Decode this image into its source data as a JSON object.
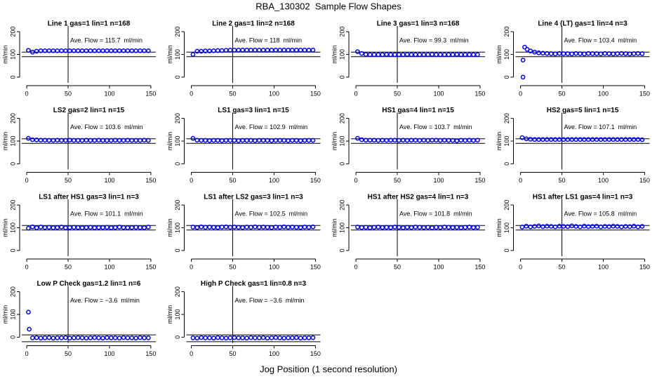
{
  "title": "RBA_130302  Sample Flow Shapes",
  "xlabel": "Jog Position (1 second resolution)",
  "chart_data": [
    {
      "type": "scatter",
      "title": "Line 1 gas=1 lin=1 n=168",
      "annotation": "Ave. Flow = 115.7  ml/min",
      "ylabel": "ml/min",
      "color": "#0000ff",
      "xlim": [
        -6,
        156
      ],
      "ylim": [
        -25,
        225
      ],
      "xticks": [
        0,
        50,
        100,
        150
      ],
      "yticks": [
        0,
        100,
        200
      ],
      "vline": 50,
      "hlines": [
        90,
        110
      ],
      "x": [
        2,
        7,
        12,
        17,
        22,
        27,
        32,
        37,
        42,
        47,
        52,
        57,
        62,
        67,
        72,
        77,
        82,
        87,
        92,
        97,
        102,
        107,
        112,
        117,
        122,
        127,
        132,
        137,
        142,
        147
      ],
      "values": [
        118,
        110,
        114,
        116,
        116,
        116,
        116,
        116,
        116,
        116,
        116,
        116,
        116,
        116,
        116,
        116,
        116,
        116,
        116,
        116,
        116,
        116,
        116,
        116,
        116,
        116,
        116,
        116,
        116,
        116
      ]
    },
    {
      "type": "scatter",
      "title": "Line 2 gas=1 lin=2 n=168",
      "annotation": "Ave. Flow = 118  ml/min",
      "ylabel": "ml/min",
      "color": "#0000ff",
      "xlim": [
        -6,
        156
      ],
      "ylim": [
        -25,
        225
      ],
      "xticks": [
        0,
        50,
        100,
        150
      ],
      "yticks": [
        0,
        100,
        200
      ],
      "vline": 50,
      "hlines": [
        90,
        110
      ],
      "x": [
        2,
        7,
        12,
        17,
        22,
        27,
        32,
        37,
        42,
        47,
        52,
        57,
        62,
        67,
        72,
        77,
        82,
        87,
        92,
        97,
        102,
        107,
        112,
        117,
        122,
        127,
        132,
        137,
        142,
        147
      ],
      "values": [
        100,
        114,
        114,
        115,
        115,
        116,
        117,
        117,
        118,
        119,
        119,
        119,
        119,
        119,
        119,
        119,
        119,
        119,
        119,
        119,
        119,
        119,
        119,
        119,
        119,
        119,
        119,
        119,
        119,
        119
      ]
    },
    {
      "type": "scatter",
      "title": "Line 3 gas=1 lin=3 n=168",
      "annotation": "Ave. Flow = 99.3  ml/min",
      "ylabel": "ml/min",
      "color": "#0000ff",
      "xlim": [
        -6,
        156
      ],
      "ylim": [
        -25,
        225
      ],
      "xticks": [
        0,
        50,
        100,
        150
      ],
      "yticks": [
        0,
        100,
        200
      ],
      "vline": 50,
      "hlines": [
        90,
        110
      ],
      "x": [
        2,
        7,
        12,
        17,
        22,
        27,
        32,
        37,
        42,
        47,
        52,
        57,
        62,
        67,
        72,
        77,
        82,
        87,
        92,
        97,
        102,
        107,
        112,
        117,
        122,
        127,
        132,
        137,
        142,
        147
      ],
      "values": [
        112,
        104,
        100,
        99,
        99,
        99,
        99,
        100,
        99,
        99,
        99,
        99,
        100,
        99,
        99,
        99,
        99,
        99,
        100,
        99,
        99,
        99,
        99,
        99,
        100,
        99,
        99,
        99,
        99,
        99
      ]
    },
    {
      "type": "scatter",
      "title": "Line 4 (LT) gas=1 lin=4 n=3",
      "annotation": "Ave. Flow = 103.4  ml/min",
      "ylabel": "ml/min",
      "color": "#0000ff",
      "xlim": [
        -6,
        156
      ],
      "ylim": [
        -25,
        225
      ],
      "xticks": [
        0,
        50,
        100,
        150
      ],
      "yticks": [
        0,
        100,
        200
      ],
      "vline": 50,
      "hlines": [
        90,
        110
      ],
      "x": [
        3,
        3,
        5,
        8,
        12,
        17,
        22,
        27,
        32,
        37,
        42,
        47,
        52,
        57,
        62,
        67,
        72,
        77,
        82,
        87,
        92,
        97,
        102,
        107,
        112,
        117,
        122,
        127,
        132,
        137,
        142,
        147
      ],
      "values": [
        0,
        75,
        132,
        122,
        115,
        110,
        107,
        105,
        104,
        103,
        102,
        104,
        103,
        103,
        102,
        104,
        103,
        102,
        104,
        103,
        103,
        102,
        104,
        103,
        102,
        103,
        104,
        103,
        102,
        103,
        104,
        103
      ]
    },
    {
      "type": "scatter",
      "title": "LS2 gas=2 lin=1 n=15",
      "annotation": "Ave. Flow = 103.6  ml/min",
      "ylabel": "ml/min",
      "color": "#0000ff",
      "xlim": [
        -6,
        156
      ],
      "ylim": [
        -25,
        225
      ],
      "xticks": [
        0,
        50,
        100,
        150
      ],
      "yticks": [
        0,
        100,
        200
      ],
      "vline": 50,
      "hlines": [
        90,
        110
      ],
      "x": [
        2,
        7,
        12,
        17,
        22,
        27,
        32,
        37,
        42,
        47,
        52,
        57,
        62,
        67,
        72,
        77,
        82,
        87,
        92,
        97,
        102,
        107,
        112,
        117,
        122,
        127,
        132,
        137,
        142,
        147
      ],
      "values": [
        112,
        106,
        105,
        104,
        104,
        103,
        103,
        104,
        103,
        103,
        104,
        103,
        103,
        103,
        104,
        103,
        103,
        104,
        103,
        103,
        103,
        104,
        103,
        103,
        104,
        103,
        103,
        103,
        104,
        103
      ]
    },
    {
      "type": "scatter",
      "title": "LS1 gas=3 lin=1 n=15",
      "annotation": "Ave. Flow = 102.9  ml/min",
      "ylabel": "ml/min",
      "color": "#0000ff",
      "xlim": [
        -6,
        156
      ],
      "ylim": [
        -25,
        225
      ],
      "xticks": [
        0,
        50,
        100,
        150
      ],
      "yticks": [
        0,
        100,
        200
      ],
      "vline": 50,
      "hlines": [
        90,
        110
      ],
      "x": [
        2,
        7,
        12,
        17,
        22,
        27,
        32,
        37,
        42,
        47,
        52,
        57,
        62,
        67,
        72,
        77,
        82,
        87,
        92,
        97,
        102,
        107,
        112,
        117,
        122,
        127,
        132,
        137,
        142,
        147
      ],
      "values": [
        112,
        104,
        103,
        103,
        102,
        103,
        103,
        102,
        103,
        103,
        103,
        102,
        103,
        103,
        103,
        102,
        103,
        103,
        103,
        102,
        103,
        103,
        103,
        102,
        103,
        103,
        102,
        103,
        103,
        103
      ]
    },
    {
      "type": "scatter",
      "title": "HS1 gas=4 lin=1 n=15",
      "annotation": "Ave. Flow = 103.7  ml/min",
      "ylabel": "ml/min",
      "color": "#0000ff",
      "xlim": [
        -6,
        156
      ],
      "ylim": [
        -25,
        225
      ],
      "xticks": [
        0,
        50,
        100,
        150
      ],
      "yticks": [
        0,
        100,
        200
      ],
      "vline": 50,
      "hlines": [
        90,
        110
      ],
      "x": [
        2,
        7,
        12,
        17,
        22,
        27,
        32,
        37,
        42,
        47,
        52,
        57,
        62,
        67,
        72,
        77,
        82,
        87,
        92,
        97,
        102,
        107,
        112,
        117,
        122,
        127,
        132,
        137,
        142,
        147
      ],
      "values": [
        112,
        106,
        104,
        104,
        104,
        103,
        104,
        103,
        104,
        104,
        103,
        104,
        103,
        104,
        104,
        103,
        104,
        103,
        104,
        104,
        103,
        104,
        103,
        103,
        101,
        104,
        103,
        104,
        103,
        104
      ]
    },
    {
      "type": "scatter",
      "title": "HS2 gas=5 lin=1 n=15",
      "annotation": "Ave. Flow = 107.1  ml/min",
      "ylabel": "ml/min",
      "color": "#0000ff",
      "xlim": [
        -6,
        156
      ],
      "ylim": [
        -25,
        225
      ],
      "xticks": [
        0,
        50,
        100,
        150
      ],
      "yticks": [
        0,
        100,
        200
      ],
      "vline": 50,
      "hlines": [
        90,
        110
      ],
      "x": [
        2,
        7,
        12,
        17,
        22,
        27,
        32,
        37,
        42,
        47,
        52,
        57,
        62,
        67,
        72,
        77,
        82,
        87,
        92,
        97,
        102,
        107,
        112,
        117,
        122,
        127,
        132,
        137,
        142,
        147
      ],
      "values": [
        115,
        110,
        108,
        107,
        107,
        107,
        107,
        107,
        107,
        107,
        107,
        107,
        107,
        107,
        107,
        107,
        107,
        107,
        107,
        107,
        107,
        107,
        107,
        107,
        107,
        107,
        107,
        107,
        107,
        106
      ]
    },
    {
      "type": "scatter",
      "title": "LS1 after HS1 gas=3 lin=1 n=3",
      "annotation": "Ave. Flow = 101.1  ml/min",
      "ylabel": "ml/min",
      "color": "#0000ff",
      "xlim": [
        -6,
        156
      ],
      "ylim": [
        -25,
        225
      ],
      "xticks": [
        0,
        50,
        100,
        150
      ],
      "yticks": [
        0,
        100,
        200
      ],
      "vline": 50,
      "hlines": [
        90,
        110
      ],
      "x": [
        2,
        7,
        12,
        17,
        22,
        27,
        32,
        37,
        42,
        47,
        52,
        57,
        62,
        67,
        72,
        77,
        82,
        87,
        92,
        97,
        102,
        107,
        112,
        117,
        122,
        127,
        132,
        137,
        142,
        147
      ],
      "values": [
        98,
        104,
        100,
        103,
        101,
        102,
        100,
        101,
        103,
        100,
        101,
        102,
        101,
        100,
        101,
        102,
        100,
        101,
        101,
        102,
        100,
        101,
        103,
        101,
        100,
        101,
        102,
        101,
        100,
        103
      ]
    },
    {
      "type": "scatter",
      "title": "LS1 after LS2 gas=3 lin=1 n=3",
      "annotation": "Ave. Flow = 102.5  ml/min",
      "ylabel": "ml/min",
      "color": "#0000ff",
      "xlim": [
        -6,
        156
      ],
      "ylim": [
        -25,
        225
      ],
      "xticks": [
        0,
        50,
        100,
        150
      ],
      "yticks": [
        0,
        100,
        200
      ],
      "vline": 50,
      "hlines": [
        90,
        110
      ],
      "x": [
        2,
        7,
        12,
        17,
        22,
        27,
        32,
        37,
        42,
        47,
        52,
        57,
        62,
        67,
        72,
        77,
        82,
        87,
        92,
        97,
        102,
        107,
        112,
        117,
        122,
        127,
        132,
        137,
        142,
        147
      ],
      "values": [
        103,
        101,
        104,
        102,
        103,
        102,
        101,
        103,
        104,
        102,
        103,
        102,
        101,
        103,
        102,
        104,
        102,
        103,
        102,
        101,
        103,
        102,
        104,
        102,
        103,
        102,
        101,
        103,
        102,
        104
      ]
    },
    {
      "type": "scatter",
      "title": "HS1 after HS2 gas=4 lin=1 n=3",
      "annotation": "Ave. Flow = 101.8  ml/min",
      "ylabel": "ml/min",
      "color": "#0000ff",
      "xlim": [
        -6,
        156
      ],
      "ylim": [
        -25,
        225
      ],
      "xticks": [
        0,
        50,
        100,
        150
      ],
      "yticks": [
        0,
        100,
        200
      ],
      "vline": 50,
      "hlines": [
        90,
        110
      ],
      "x": [
        2,
        7,
        12,
        17,
        22,
        27,
        32,
        37,
        42,
        47,
        52,
        57,
        62,
        67,
        72,
        77,
        82,
        87,
        92,
        97,
        102,
        107,
        112,
        117,
        122,
        127,
        132,
        137,
        142,
        147
      ],
      "values": [
        103,
        101,
        102,
        100,
        102,
        103,
        101,
        102,
        101,
        103,
        102,
        100,
        102,
        101,
        103,
        102,
        101,
        102,
        100,
        102,
        101,
        103,
        102,
        101,
        102,
        100,
        102,
        103,
        101,
        102
      ]
    },
    {
      "type": "scatter",
      "title": "HS1 after LS1 gas=4 lin=1 n=3",
      "annotation": "Ave. Flow = 105.8  ml/min",
      "ylabel": "ml/min",
      "color": "#0000ff",
      "xlim": [
        -6,
        156
      ],
      "ylim": [
        -25,
        225
      ],
      "xticks": [
        0,
        50,
        100,
        150
      ],
      "yticks": [
        0,
        100,
        200
      ],
      "vline": 50,
      "hlines": [
        90,
        110
      ],
      "x": [
        2,
        7,
        12,
        17,
        22,
        27,
        32,
        37,
        42,
        47,
        52,
        57,
        62,
        67,
        72,
        77,
        82,
        87,
        92,
        97,
        102,
        107,
        112,
        117,
        122,
        127,
        132,
        137,
        142,
        147
      ],
      "values": [
        103,
        107,
        104,
        106,
        108,
        105,
        107,
        106,
        104,
        107,
        106,
        105,
        108,
        106,
        104,
        107,
        105,
        106,
        107,
        104,
        106,
        105,
        107,
        106,
        104,
        106,
        105,
        107,
        104,
        106
      ]
    },
    {
      "type": "scatter",
      "title": "Low P Check gas=1.2 lin=1 n=6",
      "annotation": "Ave. Flow = −3.6  ml/min",
      "ylabel": "ml/min",
      "color": "#0000ff",
      "xlim": [
        -6,
        156
      ],
      "ylim": [
        -25,
        225
      ],
      "xticks": [
        0,
        50,
        100,
        150
      ],
      "yticks": [
        0,
        100,
        200
      ],
      "vline": 50,
      "hlines": [
        -20,
        10
      ],
      "x": [
        2,
        3,
        7,
        12,
        17,
        22,
        27,
        32,
        37,
        42,
        47,
        52,
        57,
        62,
        67,
        72,
        77,
        82,
        87,
        92,
        97,
        102,
        107,
        112,
        117,
        122,
        127,
        132,
        137,
        142,
        147
      ],
      "values": [
        110,
        35,
        -3,
        -2,
        -4,
        -3,
        -2,
        -4,
        -3,
        -3,
        -2,
        -4,
        -3,
        -2,
        -3,
        -4,
        -3,
        -2,
        -3,
        -4,
        -2,
        -3,
        -3,
        -4,
        -2,
        -3,
        -3,
        -4,
        -2,
        -3,
        -3
      ]
    },
    {
      "type": "scatter",
      "title": "High P Check gas=1 lin=0.8 n=3",
      "annotation": "Ave. Flow = −3.6  ml/min",
      "ylabel": "ml/min",
      "color": "#0000ff",
      "xlim": [
        -6,
        156
      ],
      "ylim": [
        -25,
        225
      ],
      "xticks": [
        0,
        50,
        100,
        150
      ],
      "yticks": [
        0,
        100,
        200
      ],
      "vline": 50,
      "hlines": [
        -20,
        10
      ],
      "x": [
        2,
        7,
        12,
        17,
        22,
        27,
        32,
        37,
        42,
        47,
        52,
        57,
        62,
        67,
        72,
        77,
        82,
        87,
        92,
        97,
        102,
        107,
        112,
        117,
        122,
        127,
        132,
        137,
        142,
        147
      ],
      "values": [
        -3,
        -4,
        -2,
        -3,
        -3,
        -4,
        -2,
        -3,
        -4,
        -3,
        -2,
        -3,
        -3,
        -4,
        -2,
        -3,
        -3,
        -2,
        -4,
        -3,
        -2,
        -3,
        -4,
        -3,
        -3,
        -2,
        -4,
        -3,
        -3,
        -2
      ]
    }
  ]
}
